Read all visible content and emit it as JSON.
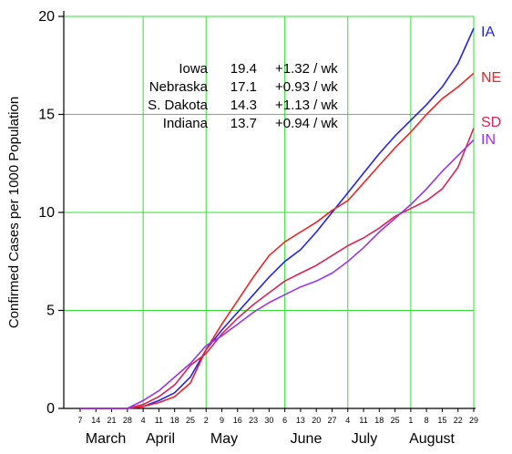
{
  "chart_data": {
    "type": "line",
    "ylabel": "Confirmed Cases per 1000 Population",
    "ylim": [
      0,
      20
    ],
    "yticks": [
      0,
      5,
      10,
      15,
      20
    ],
    "grid": true,
    "grid_color": "#33dd33",
    "x_tick_labels": [
      "7",
      "14",
      "21",
      "28",
      "4",
      "11",
      "18",
      "25",
      "2",
      "9",
      "16",
      "23",
      "30",
      "6",
      "13",
      "20",
      "27",
      "4",
      "11",
      "18",
      "25",
      "1",
      "8",
      "15",
      "22",
      "29"
    ],
    "month_labels": [
      "March",
      "April",
      "May",
      "June",
      "July",
      "August"
    ],
    "series": [
      {
        "name": "IA",
        "color": "#2222ee",
        "values": [
          0,
          0,
          0,
          0,
          0.1,
          0.4,
          0.8,
          1.6,
          3.0,
          4.0,
          4.9,
          5.8,
          6.7,
          7.5,
          8.1,
          9.0,
          10.0,
          11.0,
          12.0,
          13.0,
          13.9,
          14.7,
          15.5,
          16.4,
          17.6,
          19.4
        ]
      },
      {
        "name": "NE",
        "color": "#ee2222",
        "values": [
          0,
          0,
          0,
          0,
          0.1,
          0.3,
          0.6,
          1.3,
          3.0,
          4.3,
          5.5,
          6.7,
          7.8,
          8.5,
          9.0,
          9.5,
          10.1,
          10.6,
          11.5,
          12.4,
          13.3,
          14.1,
          15.0,
          15.8,
          16.4,
          17.1
        ]
      },
      {
        "name": "SD",
        "color": "#dd2255",
        "values": [
          0,
          0,
          0,
          0,
          0.2,
          0.6,
          1.2,
          2.2,
          2.8,
          3.8,
          4.6,
          5.3,
          5.9,
          6.5,
          6.9,
          7.3,
          7.8,
          8.3,
          8.7,
          9.2,
          9.8,
          10.2,
          10.6,
          11.2,
          12.3,
          14.3
        ]
      },
      {
        "name": "IN",
        "color": "#9933ee",
        "values": [
          0,
          0,
          0,
          0,
          0.4,
          0.9,
          1.6,
          2.3,
          3.2,
          3.7,
          4.3,
          4.9,
          5.4,
          5.8,
          6.2,
          6.5,
          6.9,
          7.5,
          8.2,
          9.0,
          9.7,
          10.4,
          11.2,
          12.1,
          12.9,
          13.7
        ]
      }
    ],
    "annotation": [
      {
        "state": "Iowa",
        "value": "19.4",
        "rate": "+1.32 / wk"
      },
      {
        "state": "Nebraska",
        "value": "17.1",
        "rate": "+0.93 / wk"
      },
      {
        "state": "S. Dakota",
        "value": "14.3",
        "rate": "+1.13 / wk"
      },
      {
        "state": "Indiana",
        "value": "13.7",
        "rate": "+0.94 / wk"
      }
    ]
  }
}
